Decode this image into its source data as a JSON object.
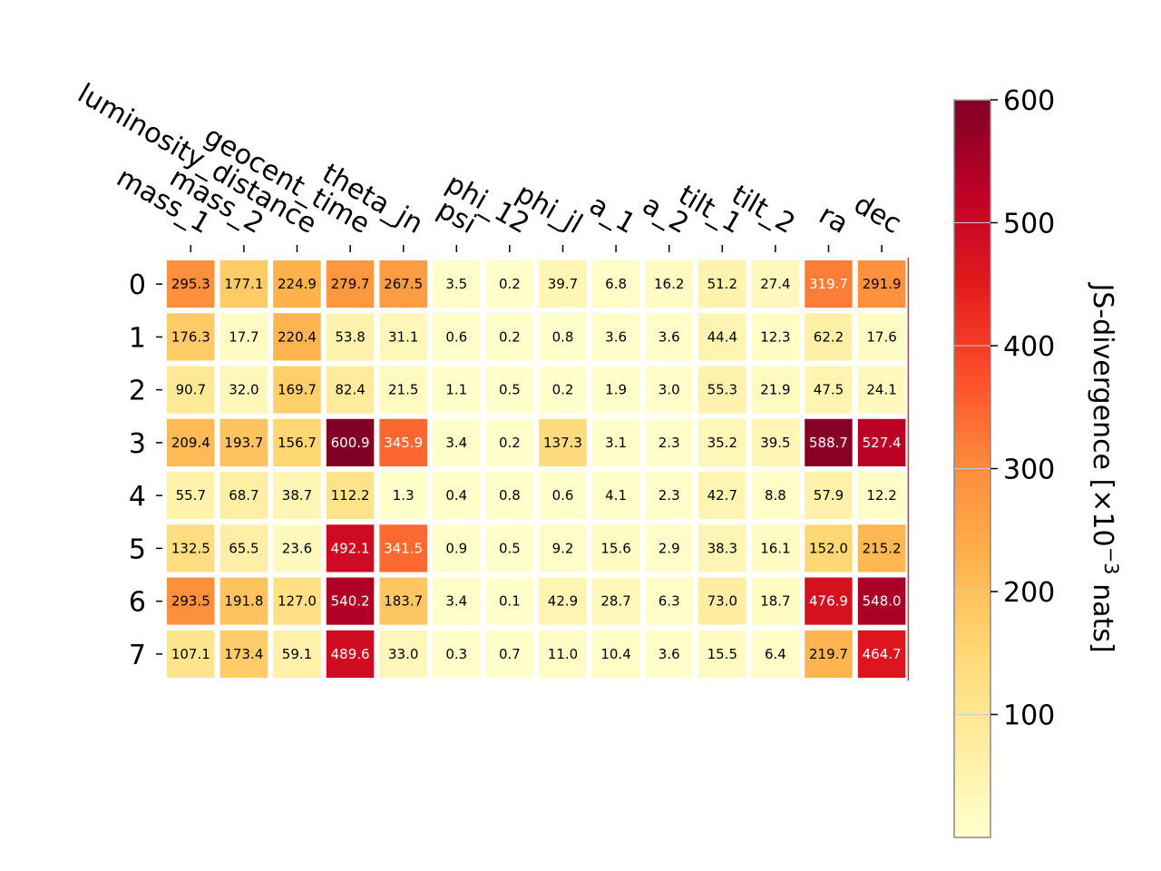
{
  "chart_data": {
    "type": "heatmap",
    "x_tick_labels": [
      "mass_1",
      "mass_2",
      "luminosity_distance",
      "geocent_time",
      "theta_jn",
      "psi",
      "phi_12",
      "phi_jl",
      "a_1",
      "a_2",
      "tilt_1",
      "tilt_2",
      "ra",
      "dec"
    ],
    "y_tick_labels": [
      "0",
      "1",
      "2",
      "3",
      "4",
      "5",
      "6",
      "7"
    ],
    "values": [
      [
        295.3,
        177.1,
        224.9,
        279.7,
        267.5,
        3.5,
        0.2,
        39.7,
        6.8,
        16.2,
        51.2,
        27.4,
        319.7,
        291.9
      ],
      [
        176.3,
        17.7,
        220.4,
        53.8,
        31.1,
        0.6,
        0.2,
        0.8,
        3.6,
        3.6,
        44.4,
        12.3,
        62.2,
        17.6
      ],
      [
        90.7,
        32.0,
        169.7,
        82.4,
        21.5,
        1.1,
        0.5,
        0.2,
        1.9,
        3.0,
        55.3,
        21.9,
        47.5,
        24.1
      ],
      [
        209.4,
        193.7,
        156.7,
        600.9,
        345.9,
        3.4,
        0.2,
        137.3,
        3.1,
        2.3,
        35.2,
        39.5,
        588.7,
        527.4
      ],
      [
        55.7,
        68.7,
        38.7,
        112.2,
        1.3,
        0.4,
        0.8,
        0.6,
        4.1,
        2.3,
        42.7,
        8.8,
        57.9,
        12.2
      ],
      [
        132.5,
        65.5,
        23.6,
        492.1,
        341.5,
        0.9,
        0.5,
        9.2,
        15.6,
        2.9,
        38.3,
        16.1,
        152.0,
        215.2
      ],
      [
        293.5,
        191.8,
        127.0,
        540.2,
        183.7,
        3.4,
        0.1,
        42.9,
        28.7,
        6.3,
        73.0,
        18.7,
        476.9,
        548.0
      ],
      [
        107.1,
        173.4,
        59.1,
        489.6,
        33.0,
        0.3,
        0.7,
        11.0,
        10.4,
        3.6,
        15.5,
        6.4,
        219.7,
        464.7
      ]
    ],
    "colorbar": {
      "label": "JS-divergence [×10",
      "label_exponent": "−3",
      "label_suffix": " nats]",
      "range": [
        0,
        600
      ],
      "ticks": [
        100,
        200,
        300,
        400,
        500,
        600
      ],
      "tick_labels": [
        "100",
        "200",
        "300",
        "400",
        "500",
        "600"
      ],
      "colormap": "YlOrRd"
    },
    "colors": {
      "cell_border": "#ffffff",
      "light_text": "#ffffff",
      "dark_text": "#000000",
      "colormap_stops": [
        "#ffffcc",
        "#ffeda0",
        "#fed976",
        "#feb24c",
        "#fd8d3c",
        "#fc4e2a",
        "#e31a1c",
        "#bd0026",
        "#800026"
      ]
    }
  }
}
